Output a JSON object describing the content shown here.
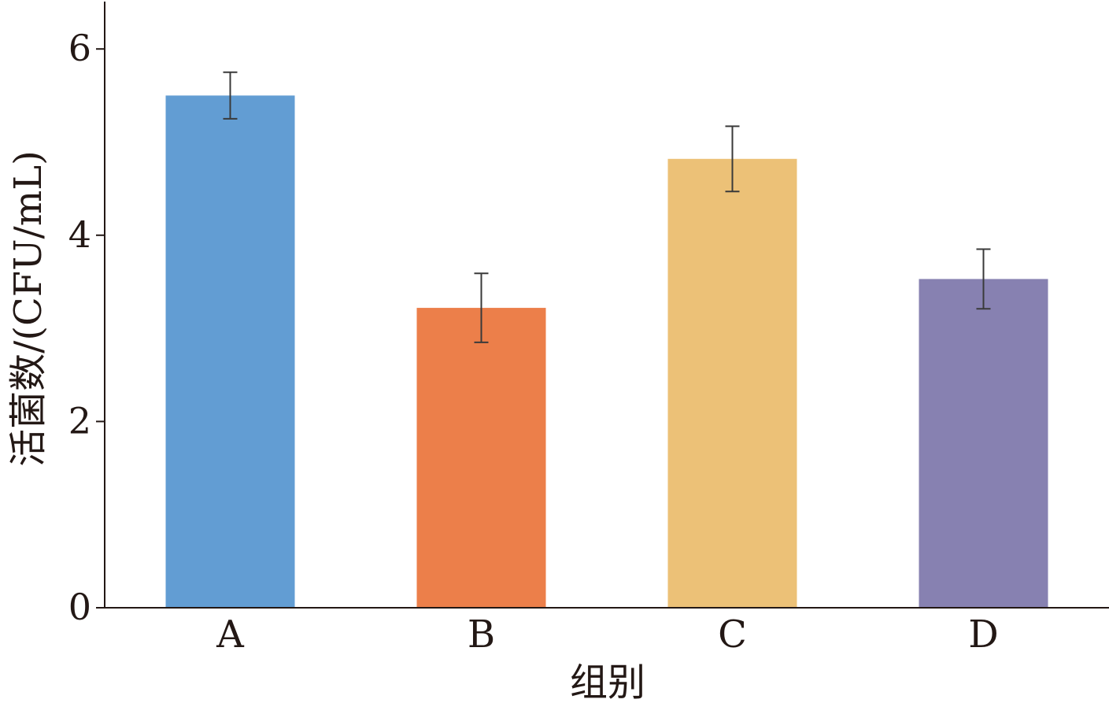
{
  "chart_data": {
    "type": "bar",
    "categories": [
      "A",
      "B",
      "C",
      "D"
    ],
    "values": [
      5.5,
      3.22,
      4.82,
      3.53
    ],
    "errors": [
      0.25,
      0.37,
      0.35,
      0.32
    ],
    "colors": [
      "#629dd3",
      "#ec7f4a",
      "#ecc177",
      "#8781b1"
    ],
    "xlabel": "组别",
    "ylabel": "活菌数/(CFU/mL)",
    "ylim": [
      0,
      6.5
    ],
    "yticks": [
      0,
      2,
      4,
      6
    ],
    "grid": false,
    "legend": "none"
  }
}
